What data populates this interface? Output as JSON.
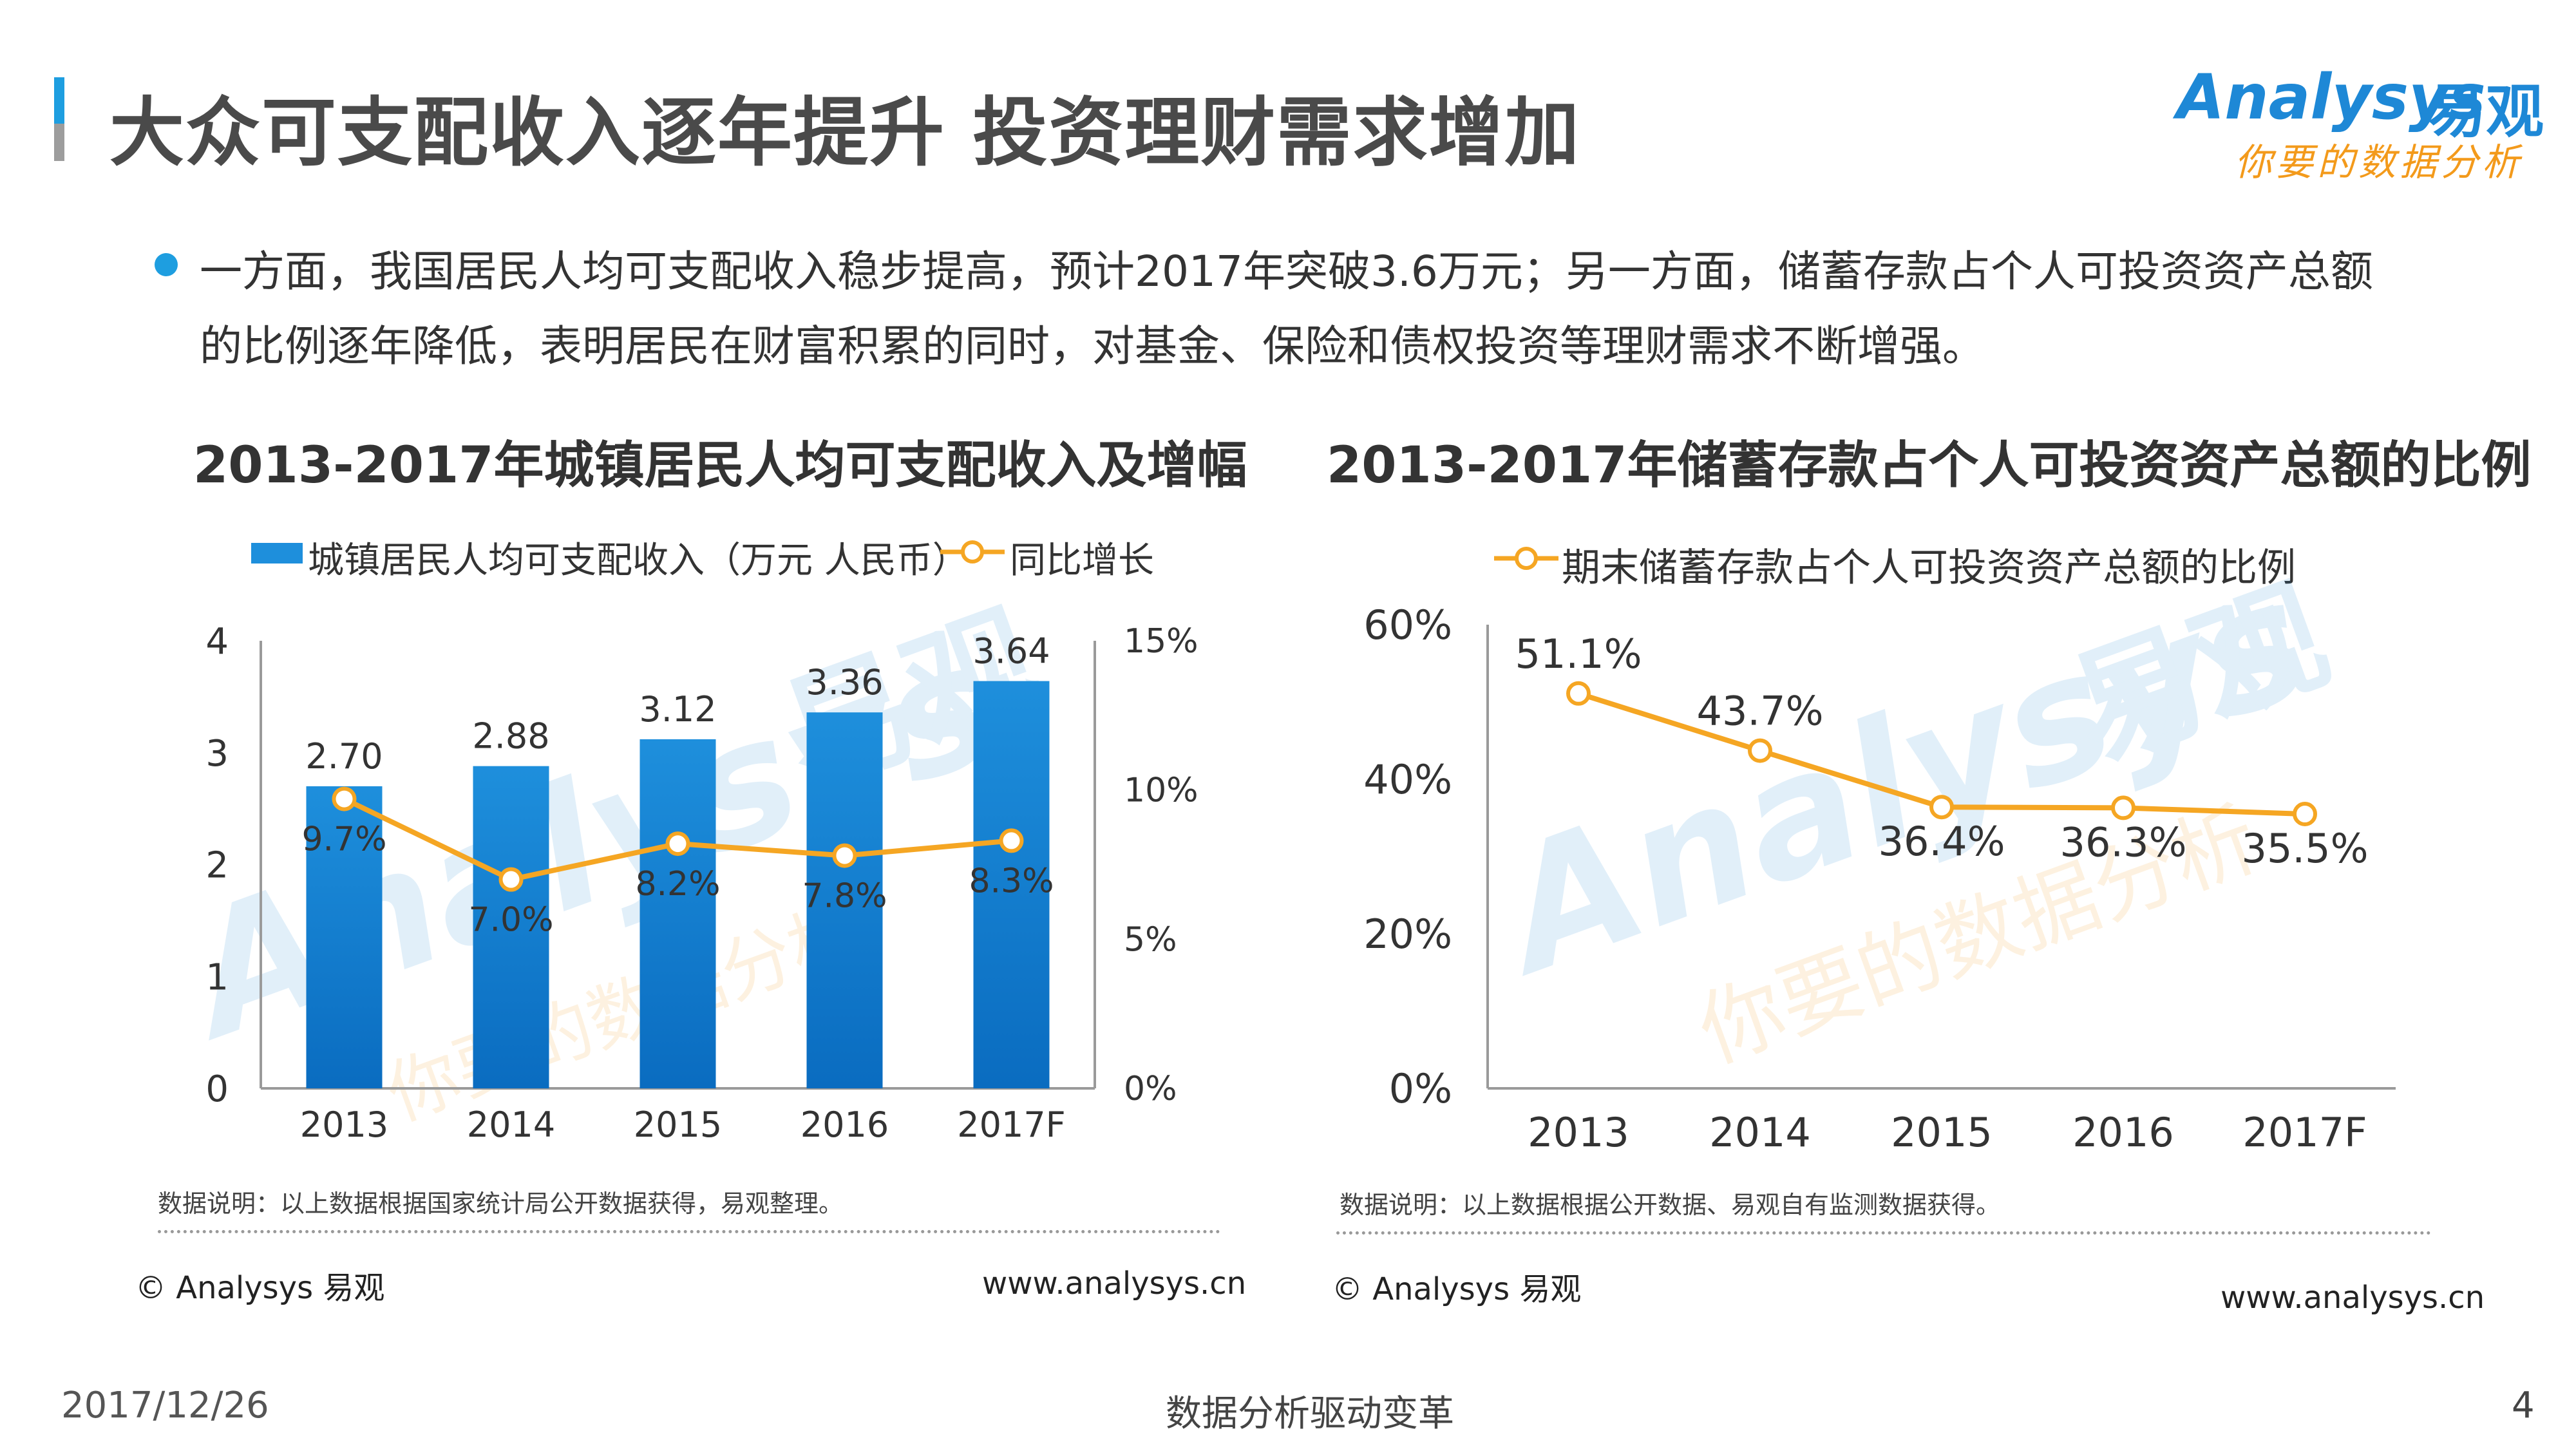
{
  "page": {
    "title": "大众可支配收入逐年提升  投资理财需求增加",
    "intro_line1": "一方面，我国居民人均可支配收入稳步提高，预计2017年突破3.6万元；另一方面，储蓄存款占个人可投资资产总额",
    "intro_line2": "的比例逐年降低，表明居民在财富积累的同时，对基金、保险和债权投资等理财需求不断增强。",
    "date": "2017/12/26",
    "slogan": "数据分析驱动变革",
    "page_number": "4"
  },
  "logo": {
    "wordmark": "Analysys",
    "cn": "易观",
    "slogan": "你要的数据分析"
  },
  "watermark": {
    "wordmark": "Analysys",
    "cn": "易观",
    "slogan": "你要的数据分析"
  },
  "colors": {
    "bar": "#1e8fdc",
    "bar_dark": "#0a6cc0",
    "line": "#f5a623",
    "accent": "#1e9ee0",
    "axis": "#9a9a9a"
  },
  "chart_data": [
    {
      "type": "bar+line",
      "title": "2013-2017年城镇居民人均可支配收入及增幅",
      "categories": [
        "2013",
        "2014",
        "2015",
        "2016",
        "2017F"
      ],
      "series": [
        {
          "name": "城镇居民人均可支配收入（万元 人民币）",
          "kind": "bar",
          "axis": "left",
          "values": [
            2.7,
            2.88,
            3.12,
            3.36,
            3.64
          ],
          "labels": [
            "2.70",
            "2.88",
            "3.12",
            "3.36",
            "3.64"
          ]
        },
        {
          "name": "同比增长",
          "kind": "line",
          "axis": "right",
          "values": [
            9.7,
            7.0,
            8.2,
            7.8,
            8.3
          ],
          "labels": [
            "9.7%",
            "7.0%",
            "8.2%",
            "7.8%",
            "8.3%"
          ]
        }
      ],
      "y_left": {
        "min": 0,
        "max": 4,
        "ticks": [
          "0",
          "1",
          "2",
          "3",
          "4"
        ]
      },
      "y_right": {
        "min": 0,
        "max": 15,
        "ticks": [
          "0%",
          "5%",
          "10%",
          "15%"
        ]
      },
      "note": "数据说明：以上数据根据国家统计局公开数据获得，易观整理。",
      "copyright": "© Analysys 易观",
      "url": "www.analysys.cn"
    },
    {
      "type": "line",
      "title": "2013-2017年储蓄存款占个人可投资资产总额的比例",
      "categories": [
        "2013",
        "2014",
        "2015",
        "2016",
        "2017F"
      ],
      "series": [
        {
          "name": "期末储蓄存款占个人可投资资产总额的比例",
          "values": [
            51.1,
            43.7,
            36.4,
            36.3,
            35.5
          ],
          "labels": [
            "51.1%",
            "43.7%",
            "36.4%",
            "36.3%",
            "35.5%"
          ]
        }
      ],
      "y": {
        "min": 0,
        "max": 60,
        "ticks": [
          "0%",
          "20%",
          "40%",
          "60%"
        ]
      },
      "note": "数据说明：以上数据根据公开数据、易观自有监测数据获得。",
      "copyright": "© Analysys 易观",
      "url": "www.analysys.cn"
    }
  ]
}
